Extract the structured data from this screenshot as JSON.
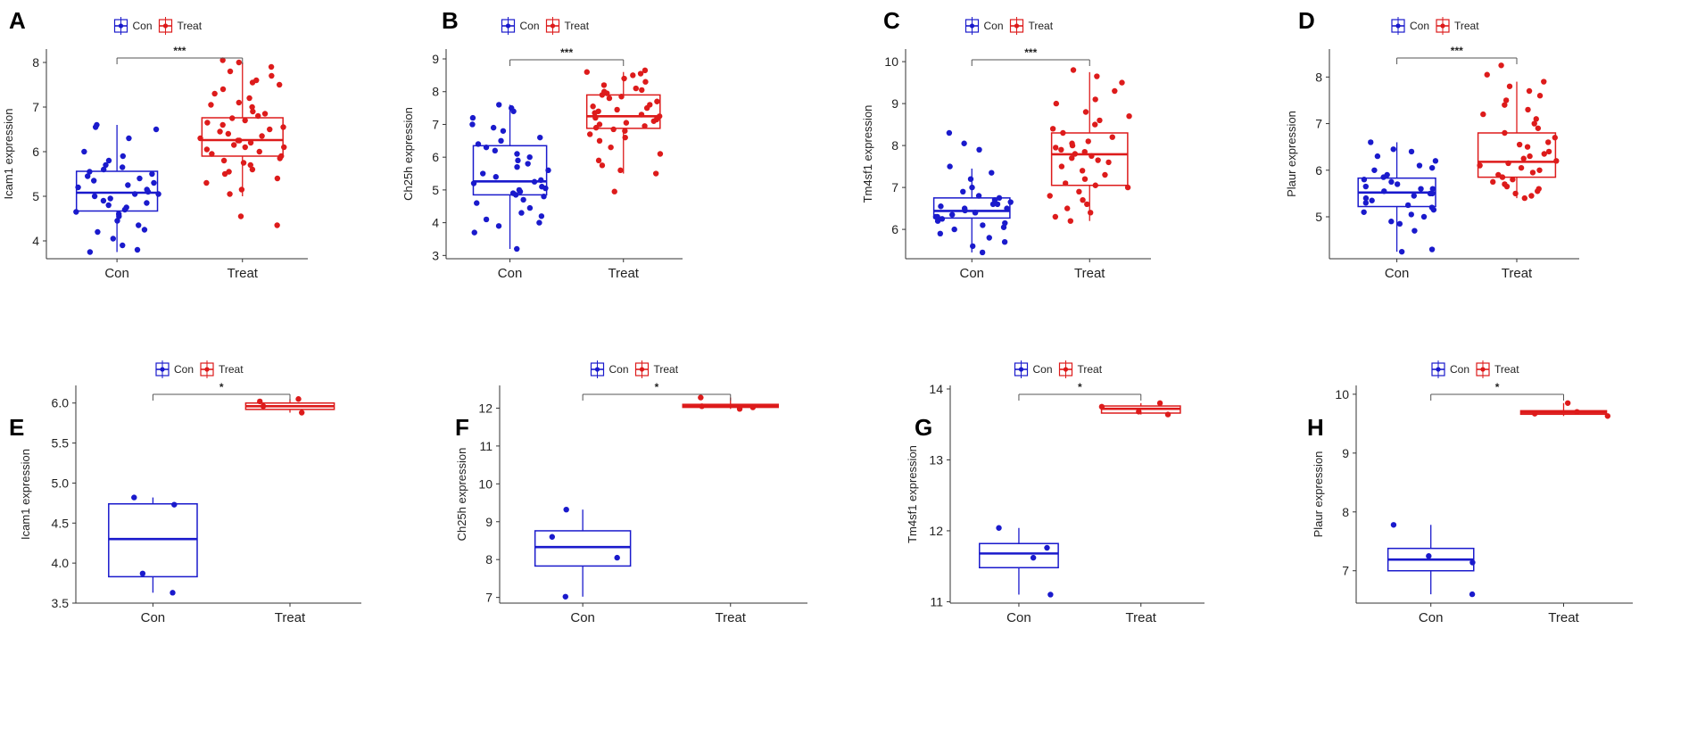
{
  "colors": {
    "con": "#1a1acc",
    "treat": "#dd1b1b",
    "axis": "#333333",
    "bracket": "#555555"
  },
  "chart_data": [
    {
      "panel": "A",
      "type": "box",
      "ylabel": "Icam1 expression",
      "categories": [
        "Con",
        "Treat"
      ],
      "legend": [
        "Con",
        "Treat"
      ],
      "significance": "***",
      "ylim": [
        3.6,
        8.3
      ],
      "yticks": [
        4,
        5,
        6,
        7,
        8
      ],
      "boxes": [
        {
          "name": "Con",
          "q1": 4.67,
          "median": 5.08,
          "q3": 5.56,
          "whisker_low": 3.75,
          "whisker_high": 6.6,
          "points": [
            3.75,
            3.8,
            3.9,
            4.05,
            4.2,
            4.25,
            4.35,
            4.45,
            4.55,
            4.6,
            4.65,
            4.7,
            4.75,
            4.8,
            4.85,
            4.9,
            4.95,
            5.0,
            5.05,
            5.05,
            5.1,
            5.15,
            5.2,
            5.25,
            5.3,
            5.35,
            5.4,
            5.45,
            5.5,
            5.55,
            5.6,
            5.65,
            5.7,
            5.8,
            5.9,
            6.0,
            6.3,
            6.5,
            6.55,
            6.6
          ]
        },
        {
          "name": "Treat",
          "q1": 5.9,
          "median": 6.26,
          "q3": 6.76,
          "whisker_low": 5.0,
          "whisker_high": 8.0,
          "points": [
            4.35,
            4.55,
            5.05,
            5.15,
            5.3,
            5.4,
            5.5,
            5.55,
            5.6,
            5.7,
            5.75,
            5.8,
            5.85,
            5.9,
            5.95,
            6.0,
            6.05,
            6.1,
            6.1,
            6.15,
            6.2,
            6.25,
            6.25,
            6.3,
            6.35,
            6.4,
            6.45,
            6.5,
            6.55,
            6.6,
            6.65,
            6.7,
            6.75,
            6.8,
            6.85,
            6.9,
            7.0,
            7.05,
            7.1,
            7.2,
            7.3,
            7.4,
            7.5,
            7.55,
            7.6,
            7.7,
            7.8,
            7.9,
            8.0,
            8.05
          ]
        }
      ]
    },
    {
      "panel": "B",
      "type": "box",
      "ylabel": "Ch25h expression",
      "categories": [
        "Con",
        "Treat"
      ],
      "legend": [
        "Con",
        "Treat"
      ],
      "significance": "***",
      "ylim": [
        2.9,
        9.3
      ],
      "yticks": [
        3,
        4,
        5,
        6,
        7,
        8,
        9
      ],
      "boxes": [
        {
          "name": "Con",
          "q1": 4.85,
          "median": 5.26,
          "q3": 6.35,
          "whisker_low": 3.2,
          "whisker_high": 7.6,
          "points": [
            3.2,
            3.7,
            3.9,
            4.0,
            4.1,
            4.2,
            4.3,
            4.45,
            4.6,
            4.7,
            4.8,
            4.85,
            4.9,
            4.95,
            5.0,
            5.05,
            5.1,
            5.2,
            5.25,
            5.3,
            5.4,
            5.5,
            5.6,
            5.7,
            5.8,
            5.9,
            6.0,
            6.1,
            6.2,
            6.3,
            6.4,
            6.5,
            6.6,
            6.8,
            6.9,
            7.0,
            7.2,
            7.4,
            7.5,
            7.6
          ]
        },
        {
          "name": "Treat",
          "q1": 6.88,
          "median": 7.25,
          "q3": 7.9,
          "whisker_low": 5.5,
          "whisker_high": 8.6,
          "points": [
            4.95,
            5.5,
            5.6,
            5.75,
            5.9,
            6.1,
            6.3,
            6.5,
            6.6,
            6.7,
            6.8,
            6.85,
            6.9,
            6.95,
            7.0,
            7.05,
            7.1,
            7.15,
            7.2,
            7.25,
            7.3,
            7.35,
            7.4,
            7.45,
            7.5,
            7.55,
            7.6,
            7.7,
            7.8,
            7.85,
            7.9,
            7.95,
            8.0,
            8.05,
            8.1,
            8.2,
            8.3,
            8.4,
            8.5,
            8.55,
            8.6,
            8.65
          ]
        }
      ]
    },
    {
      "panel": "C",
      "type": "box",
      "ylabel": "Tm4sf1 expression",
      "categories": [
        "Con",
        "Treat"
      ],
      "legend": [
        "Con",
        "Treat"
      ],
      "significance": "***",
      "ylim": [
        5.3,
        10.3
      ],
      "yticks": [
        6,
        7,
        8,
        9,
        10
      ],
      "boxes": [
        {
          "name": "Con",
          "q1": 6.27,
          "median": 6.44,
          "q3": 6.75,
          "whisker_low": 5.45,
          "whisker_high": 7.45,
          "points": [
            5.45,
            5.6,
            5.7,
            5.8,
            5.9,
            6.0,
            6.05,
            6.1,
            6.15,
            6.2,
            6.25,
            6.3,
            6.3,
            6.35,
            6.4,
            6.4,
            6.45,
            6.5,
            6.5,
            6.55,
            6.6,
            6.6,
            6.65,
            6.7,
            6.75,
            6.8,
            6.9,
            7.0,
            7.2,
            7.35,
            7.5,
            7.9,
            8.05,
            8.3
          ]
        },
        {
          "name": "Treat",
          "q1": 7.05,
          "median": 7.79,
          "q3": 8.3,
          "whisker_low": 6.2,
          "whisker_high": 9.75,
          "points": [
            6.2,
            6.3,
            6.4,
            6.5,
            6.6,
            6.7,
            6.8,
            6.9,
            7.0,
            7.05,
            7.1,
            7.2,
            7.3,
            7.4,
            7.5,
            7.6,
            7.65,
            7.7,
            7.75,
            7.8,
            7.85,
            7.9,
            7.95,
            8.0,
            8.05,
            8.1,
            8.2,
            8.3,
            8.4,
            8.5,
            8.6,
            8.7,
            8.8,
            9.0,
            9.1,
            9.3,
            9.5,
            9.65,
            9.8
          ]
        }
      ]
    },
    {
      "panel": "D",
      "type": "box",
      "ylabel": "Plaur expression",
      "categories": [
        "Con",
        "Treat"
      ],
      "legend": [
        "Con",
        "Treat"
      ],
      "significance": "***",
      "ylim": [
        4.1,
        8.6
      ],
      "yticks": [
        5,
        6,
        7,
        8
      ],
      "boxes": [
        {
          "name": "Con",
          "q1": 5.22,
          "median": 5.52,
          "q3": 5.83,
          "whisker_low": 4.25,
          "whisker_high": 6.6,
          "points": [
            4.25,
            4.3,
            4.7,
            4.85,
            4.9,
            5.0,
            5.05,
            5.1,
            5.15,
            5.2,
            5.25,
            5.3,
            5.35,
            5.4,
            5.45,
            5.5,
            5.5,
            5.55,
            5.6,
            5.6,
            5.65,
            5.7,
            5.75,
            5.8,
            5.85,
            5.9,
            6.0,
            6.05,
            6.1,
            6.2,
            6.3,
            6.4,
            6.45,
            6.6
          ]
        },
        {
          "name": "Treat",
          "q1": 5.85,
          "median": 6.18,
          "q3": 6.8,
          "whisker_low": 5.4,
          "whisker_high": 7.9,
          "points": [
            5.4,
            5.45,
            5.5,
            5.55,
            5.6,
            5.65,
            5.7,
            5.75,
            5.8,
            5.85,
            5.9,
            5.95,
            6.0,
            6.05,
            6.1,
            6.15,
            6.2,
            6.25,
            6.3,
            6.35,
            6.4,
            6.5,
            6.55,
            6.6,
            6.7,
            6.8,
            6.9,
            7.0,
            7.1,
            7.2,
            7.3,
            7.4,
            7.5,
            7.6,
            7.7,
            7.8,
            7.9,
            8.05,
            8.25
          ]
        }
      ]
    },
    {
      "panel": "E",
      "type": "box",
      "ylabel": "Icam1 expression",
      "categories": [
        "Con",
        "Treat"
      ],
      "legend": [
        "Con",
        "Treat"
      ],
      "significance": "*",
      "ylim": [
        3.5,
        6.22
      ],
      "yticks": [
        3.5,
        4.0,
        4.5,
        5.0,
        5.5,
        6.0
      ],
      "tick_decimals": 1,
      "boxes": [
        {
          "name": "Con",
          "q1": 3.83,
          "median": 4.3,
          "q3": 4.74,
          "whisker_low": 3.63,
          "whisker_high": 4.82,
          "points": [
            3.63,
            3.87,
            4.73,
            4.82
          ]
        },
        {
          "name": "Treat",
          "q1": 5.92,
          "median": 5.96,
          "q3": 6.0,
          "whisker_low": 5.88,
          "whisker_high": 6.05,
          "points": [
            5.88,
            5.96,
            6.02,
            6.05
          ]
        }
      ]
    },
    {
      "panel": "F",
      "type": "box",
      "ylabel": "Ch25h expression",
      "categories": [
        "Con",
        "Treat"
      ],
      "legend": [
        "Con",
        "Treat"
      ],
      "significance": "*",
      "ylim": [
        6.85,
        12.6
      ],
      "yticks": [
        7,
        8,
        9,
        10,
        11,
        12
      ],
      "boxes": [
        {
          "name": "Con",
          "q1": 7.83,
          "median": 8.33,
          "q3": 8.76,
          "whisker_low": 7.02,
          "whisker_high": 9.32,
          "points": [
            7.02,
            8.05,
            8.6,
            9.32
          ]
        },
        {
          "name": "Treat",
          "q1": 12.02,
          "median": 12.06,
          "q3": 12.1,
          "whisker_low": 11.98,
          "whisker_high": 12.28,
          "points": [
            11.98,
            12.02,
            12.05,
            12.28
          ]
        }
      ]
    },
    {
      "panel": "G",
      "type": "box",
      "ylabel": "Tm4sf1 expression",
      "categories": [
        "Con",
        "Treat"
      ],
      "legend": [
        "Con",
        "Treat"
      ],
      "significance": "*",
      "ylim": [
        10.98,
        14.05
      ],
      "yticks": [
        11,
        12,
        13,
        14
      ],
      "boxes": [
        {
          "name": "Con",
          "q1": 11.48,
          "median": 11.68,
          "q3": 11.82,
          "whisker_low": 11.1,
          "whisker_high": 12.04,
          "points": [
            11.1,
            11.62,
            11.76,
            12.04
          ]
        },
        {
          "name": "Treat",
          "q1": 13.66,
          "median": 13.72,
          "q3": 13.76,
          "whisker_low": 13.64,
          "whisker_high": 13.8,
          "points": [
            13.64,
            13.68,
            13.75,
            13.8
          ]
        }
      ]
    },
    {
      "panel": "H",
      "type": "box",
      "ylabel": "Plaur expression",
      "categories": [
        "Con",
        "Treat"
      ],
      "legend": [
        "Con",
        "Treat"
      ],
      "significance": "*",
      "ylim": [
        6.45,
        10.15
      ],
      "yticks": [
        7,
        8,
        9,
        10
      ],
      "boxes": [
        {
          "name": "Con",
          "q1": 7.0,
          "median": 7.19,
          "q3": 7.38,
          "whisker_low": 6.6,
          "whisker_high": 7.78,
          "points": [
            6.6,
            7.14,
            7.25,
            7.78
          ]
        },
        {
          "name": "Treat",
          "q1": 9.66,
          "median": 9.69,
          "q3": 9.72,
          "whisker_low": 9.63,
          "whisker_high": 9.85,
          "points": [
            9.63,
            9.67,
            9.7,
            9.85
          ]
        }
      ]
    }
  ]
}
